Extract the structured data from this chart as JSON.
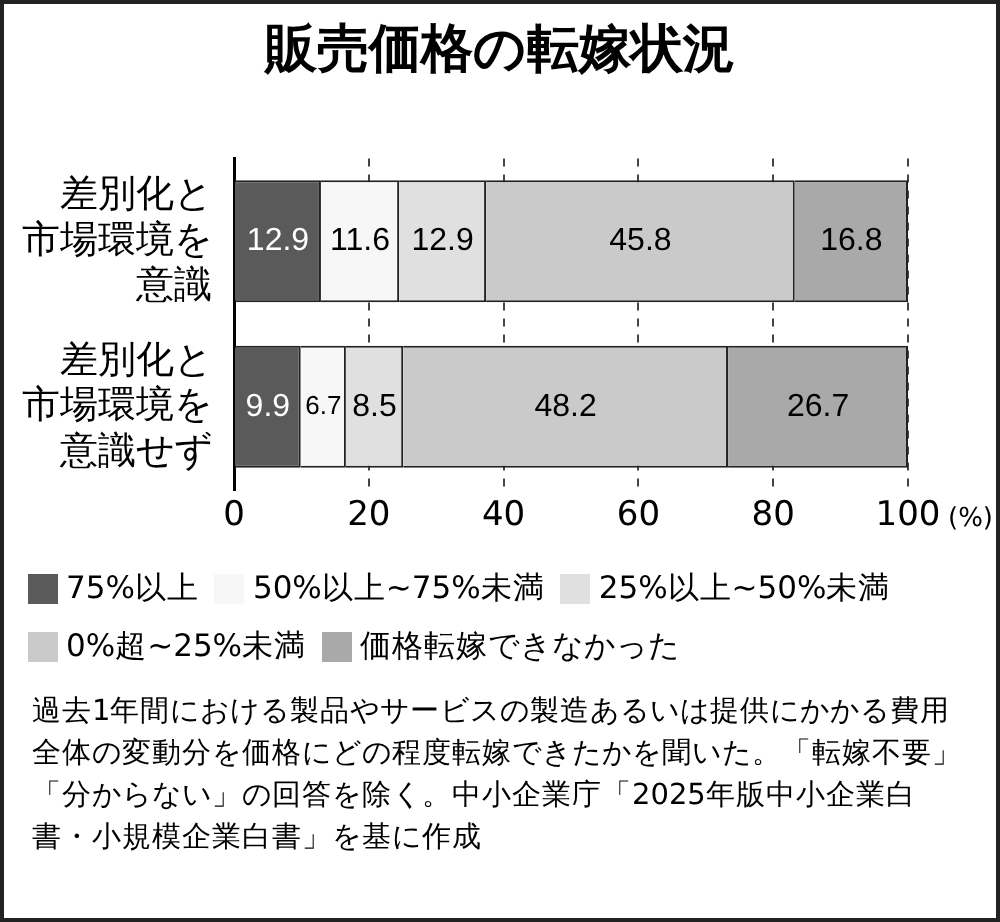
{
  "chart_data": {
    "type": "bar",
    "orientation": "horizontal",
    "stacked": true,
    "title": "販売価格の転嫁状況",
    "categories": [
      "差別化と市場環境を意識",
      "差別化と市場環境を意識せず"
    ],
    "series": [
      {
        "name": "75%以上",
        "color": "#5a5a5a",
        "values": [
          12.9,
          9.9
        ]
      },
      {
        "name": "50%以上~75%未満",
        "color": "#f7f7f7",
        "values": [
          11.6,
          6.7
        ]
      },
      {
        "name": "25%以上~50%未満",
        "color": "#e0e0e0",
        "values": [
          12.9,
          8.5
        ]
      },
      {
        "name": "0%超~25%未満",
        "color": "#cacaca",
        "values": [
          45.8,
          48.2
        ]
      },
      {
        "name": "価格転嫁できなかった",
        "color": "#a9a9a9",
        "values": [
          16.8,
          26.7
        ]
      }
    ],
    "xlim": [
      0,
      100
    ],
    "xticks": [
      0,
      20,
      40,
      60,
      80,
      100
    ],
    "xlabel": "(%)",
    "grid": "x",
    "legend": "bottom",
    "data_labels": true,
    "annotations": [
      "過去1年間における製品やサービスの製造あるいは提供にかかる費用全体の変動分を価格にどの程度転嫁できたかを聞いた。「転嫁不要」「分からない」の回答を除く。中小企業庁「2025年版中小企業白書・小規模企業白書」を基に作成"
    ]
  }
}
